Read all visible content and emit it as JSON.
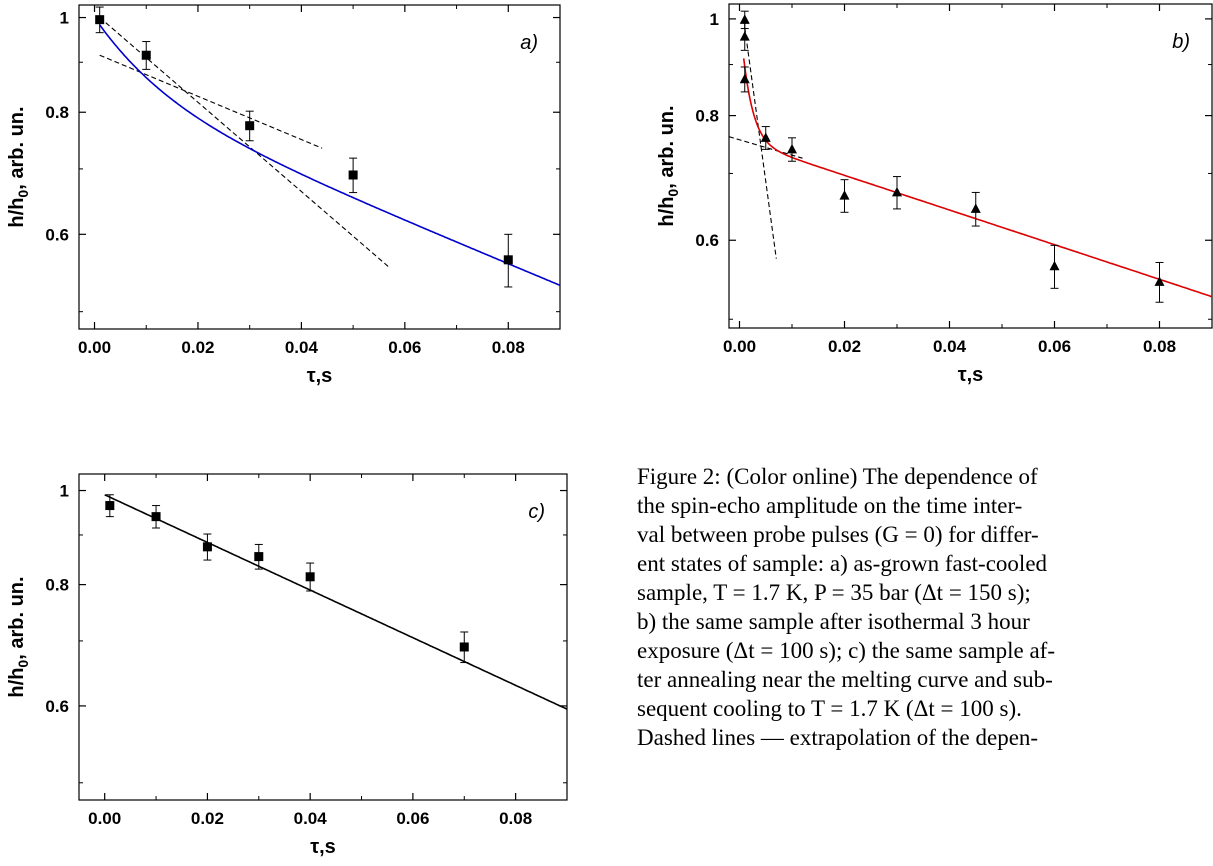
{
  "caption_lines": [
    "Figure 2: (Color online) The dependence of",
    "the spin-echo amplitude on the time inter-",
    "val between probe pulses (G = 0) for differ-",
    "ent states of sample: a) as-grown fast-cooled",
    "sample, T = 1.7 K, P = 35 bar (Δt = 150 s);",
    "b) the same sample after isothermal 3 hour",
    "exposure (Δt = 100 s); c) the same sample af-",
    "ter annealing near the melting curve and sub-",
    "sequent cooling to T = 1.7 K (Δt = 100 s).",
    "Dashed lines — extrapolation of the depen-"
  ],
  "chart_data": [
    {
      "type": "scatter",
      "panel_label": "a)",
      "xlabel": "τ,s",
      "ylabel": "h/h0, arb. un.",
      "xlim": [
        -0.003,
        0.09
      ],
      "ylim": [
        0.48,
        1.03
      ],
      "yscale": "log",
      "xticks": [
        0.0,
        0.02,
        0.04,
        0.06,
        0.08
      ],
      "xtick_labels": [
        "0.00",
        "0.02",
        "0.04",
        "0.06",
        "0.08"
      ],
      "yticks": [
        0.6,
        0.8,
        1.0
      ],
      "ytick_labels": [
        "0.6",
        "0.8",
        "1"
      ],
      "grid": false,
      "marker": "square",
      "points": [
        {
          "x": 0.001,
          "y": 0.995,
          "err": 0.03
        },
        {
          "x": 0.01,
          "y": 0.915,
          "err": 0.03
        },
        {
          "x": 0.03,
          "y": 0.775,
          "err": 0.027
        },
        {
          "x": 0.05,
          "y": 0.69,
          "err": 0.028
        },
        {
          "x": 0.08,
          "y": 0.565,
          "err": 0.035
        }
      ],
      "fit_color": "#0000cc",
      "fit": {
        "a1": 0.16,
        "t1": 0.012,
        "a2": 0.84,
        "t2": 0.197,
        "x_from": 0.001,
        "x_to": 0.09
      },
      "dashed_lines": [
        {
          "x": [
            0.001,
            0.057
          ],
          "y": [
            1.0,
            0.555
          ]
        },
        {
          "x": [
            0.001,
            0.044
          ],
          "y": [
            0.915,
            0.735
          ]
        }
      ]
    },
    {
      "type": "scatter",
      "panel_label": "b)",
      "xlabel": "τ,s",
      "ylabel": "h/h0, arb. un.",
      "xlim": [
        -0.002,
        0.09
      ],
      "ylim": [
        0.49,
        1.035
      ],
      "yscale": "log",
      "xticks": [
        0.0,
        0.02,
        0.04,
        0.06,
        0.08
      ],
      "xtick_labels": [
        "0.00",
        "0.02",
        "0.04",
        "0.06",
        "0.08"
      ],
      "yticks": [
        0.6,
        0.8,
        1.0
      ],
      "ytick_labels": [
        "0.6",
        "0.8",
        "1"
      ],
      "grid": false,
      "marker": "triangle",
      "points": [
        {
          "x": 0.001,
          "y": 0.998,
          "err": 0.02
        },
        {
          "x": 0.001,
          "y": 0.96,
          "err": 0.03
        },
        {
          "x": 0.001,
          "y": 0.87,
          "err": 0.025
        },
        {
          "x": 0.005,
          "y": 0.76,
          "err": 0.02
        },
        {
          "x": 0.01,
          "y": 0.74,
          "err": 0.02
        },
        {
          "x": 0.02,
          "y": 0.665,
          "err": 0.025
        },
        {
          "x": 0.03,
          "y": 0.67,
          "err": 0.025
        },
        {
          "x": 0.045,
          "y": 0.645,
          "err": 0.025
        },
        {
          "x": 0.06,
          "y": 0.565,
          "err": 0.028
        },
        {
          "x": 0.08,
          "y": 0.545,
          "err": 0.025
        }
      ],
      "fit_color": "#dd0000",
      "fit": {
        "a1": 0.25,
        "t1": 0.0018,
        "a2": 0.755,
        "t2": 0.25,
        "x_from": 0.0008,
        "x_to": 0.09
      },
      "dashed_lines": [
        {
          "x": [
            -0.002,
            0.012
          ],
          "y": [
            0.762,
            0.725
          ]
        },
        {
          "x": [
            0.001,
            0.007
          ],
          "y": [
            0.98,
            0.575
          ]
        }
      ]
    },
    {
      "type": "scatter",
      "panel_label": "c)",
      "xlabel": "τ,s",
      "ylabel": "h/h0, arb. un.",
      "xlim": [
        -0.005,
        0.09
      ],
      "ylim": [
        0.48,
        1.04
      ],
      "yscale": "log",
      "xticks": [
        0.0,
        0.02,
        0.04,
        0.06,
        0.08
      ],
      "xtick_labels": [
        "0.00",
        "0.02",
        "0.04",
        "0.06",
        "0.08"
      ],
      "yticks": [
        0.6,
        0.8,
        1.0
      ],
      "ytick_labels": [
        "0.6",
        "0.8",
        "1"
      ],
      "grid": false,
      "marker": "square",
      "points": [
        {
          "x": 0.001,
          "y": 0.965,
          "err": 0.025
        },
        {
          "x": 0.01,
          "y": 0.94,
          "err": 0.025
        },
        {
          "x": 0.02,
          "y": 0.875,
          "err": 0.027
        },
        {
          "x": 0.03,
          "y": 0.855,
          "err": 0.025
        },
        {
          "x": 0.04,
          "y": 0.815,
          "err": 0.027
        },
        {
          "x": 0.07,
          "y": 0.69,
          "err": 0.025
        }
      ],
      "fit_color": "#000000",
      "fit": {
        "a1": 0.0,
        "t1": 1.0,
        "a2": 0.99,
        "t2": 0.177,
        "x_from": 0.0,
        "x_to": 0.09
      },
      "dashed_lines": []
    }
  ]
}
